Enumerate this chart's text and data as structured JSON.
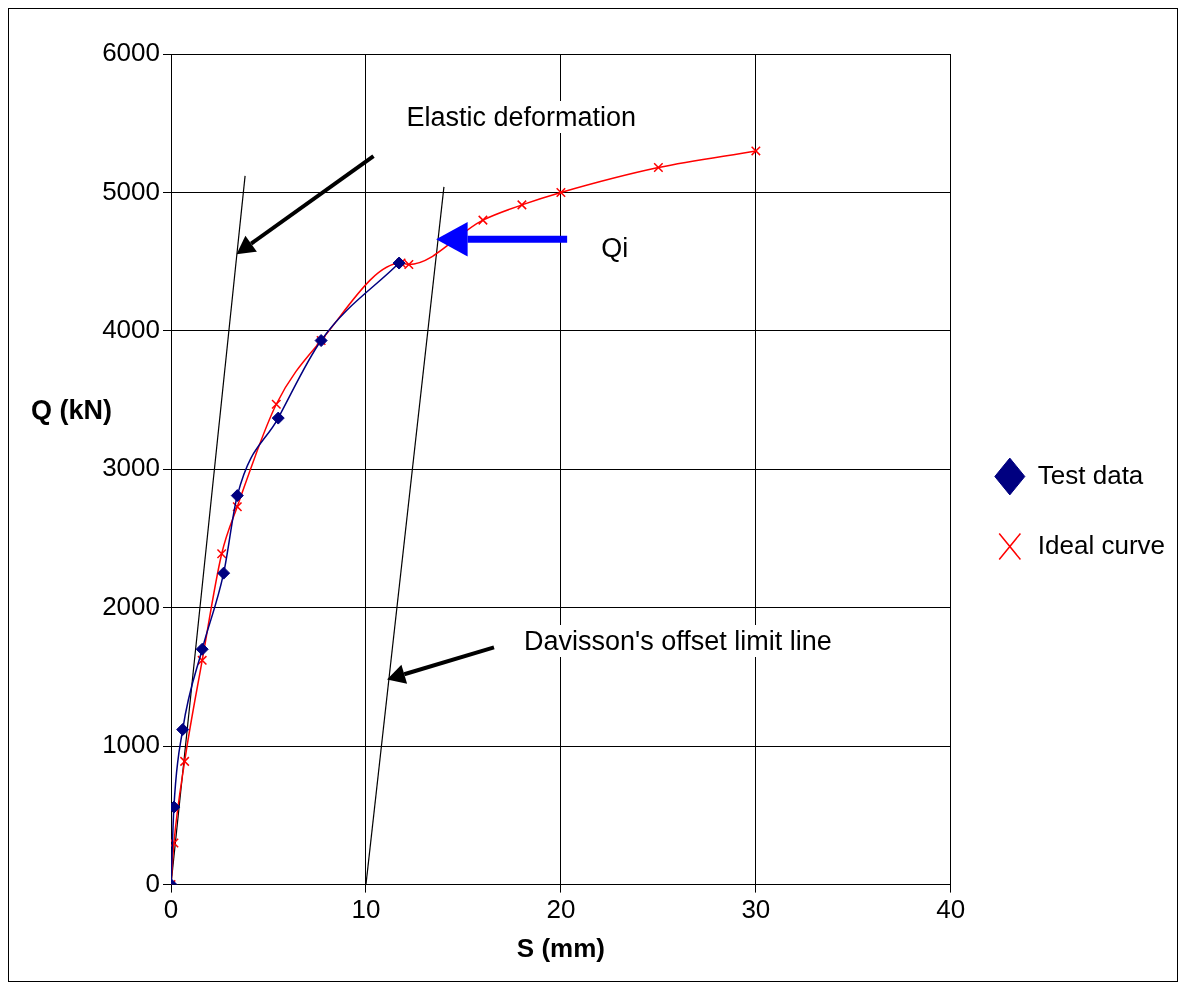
{
  "chart_data": {
    "type": "line",
    "xlabel": "S (mm)",
    "ylabel": "Q (kN)",
    "xlim": [
      0,
      40
    ],
    "ylim": [
      0,
      6000
    ],
    "xticks": [
      0,
      10,
      20,
      30,
      40
    ],
    "yticks": [
      0,
      1000,
      2000,
      3000,
      4000,
      5000,
      6000
    ],
    "grid": true,
    "legend": "right",
    "series": [
      {
        "name": "Test data",
        "color": "#000080",
        "marker": "diamond",
        "x": [
          0,
          0.15,
          0.6,
          1.6,
          2.7,
          3.4,
          5.5,
          7.7,
          11.7
        ],
        "values": [
          0,
          560,
          1120,
          1700,
          2250,
          2810,
          3370,
          3930,
          4490
        ]
      },
      {
        "name": "Ideal curve",
        "color": "#ff0000",
        "marker": "cross",
        "x": [
          0,
          0.15,
          0.7,
          1.6,
          2.6,
          3.4,
          5.4,
          7.7,
          11.8,
          12.2,
          16,
          18,
          20,
          25,
          30
        ],
        "values": [
          0,
          300,
          890,
          1620,
          2390,
          2730,
          3470,
          3930,
          4490,
          4480,
          4800,
          4910,
          5000,
          5180,
          5300
        ]
      },
      {
        "color": "#000000",
        "marker": "none",
        "x": [
          0,
          3.8
        ],
        "values": [
          0,
          5120
        ]
      },
      {
        "color": "#000000",
        "marker": "none",
        "x": [
          10,
          14
        ],
        "values": [
          0,
          5040
        ]
      }
    ],
    "annotations": [
      "Elastic deformation",
      "Qi",
      "Davisson's offset limit line"
    ]
  }
}
